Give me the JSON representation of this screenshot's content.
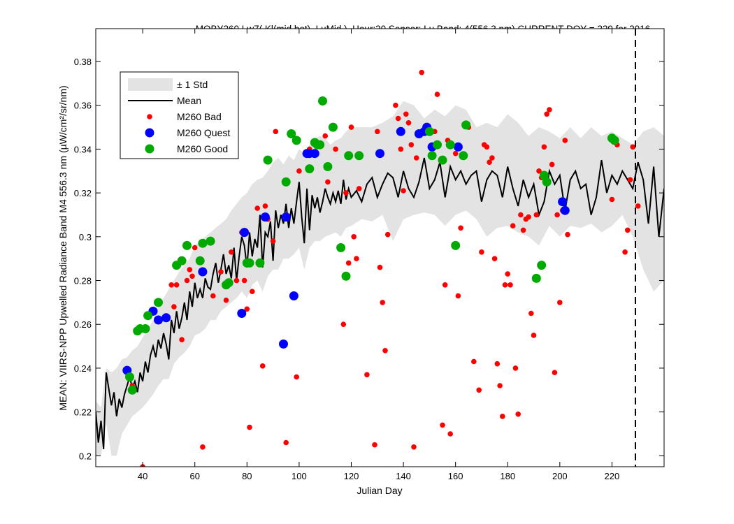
{
  "chart_data": {
    "type": "scatter",
    "title": "MOBY260   Lw7( Kl(mid,bot), LuMid ),   Hour:20 Sensor: Lu Band: 4(556.3 nm)   CURRENT DOY = 229 for 2016",
    "xlabel": "Julian Day",
    "ylabel": "MEAN: VIIRS-NPP Upwelled Radiance Band M4 556.3 nm (µW/cm²/sr/nm)",
    "xlim": [
      22,
      240
    ],
    "ylim": [
      0.195,
      0.395
    ],
    "xticks": [
      40,
      60,
      80,
      100,
      120,
      140,
      160,
      180,
      200,
      220
    ],
    "yticks": [
      0.2,
      0.22,
      0.24,
      0.26,
      0.28,
      0.3,
      0.32,
      0.34,
      0.36,
      0.38
    ],
    "current_doy": 229,
    "grid": false,
    "legend_position": "top-left",
    "legend": {
      "std": "± 1 Std",
      "mean": "Mean",
      "bad": "M260 Bad",
      "quest": "M260 Quest",
      "good": "M260 Good"
    },
    "colors": {
      "bad": "#ff0000",
      "quest": "#0000ff",
      "good": "#00aa00",
      "std_band": "#e3e3e3",
      "mean": "#000000"
    },
    "mean_series": {
      "x": [
        22,
        23,
        24,
        25,
        26,
        28,
        29,
        30,
        31,
        32,
        33,
        34,
        35,
        36,
        37,
        38,
        39,
        40,
        41,
        42,
        43,
        44,
        45,
        46,
        47,
        48,
        49,
        50,
        51,
        52,
        53,
        54,
        55,
        56,
        57,
        58,
        59,
        60,
        61,
        62,
        63,
        64,
        65,
        66,
        67,
        68,
        69,
        70,
        71,
        72,
        73,
        74,
        75,
        76,
        77,
        78,
        79,
        80,
        81,
        82,
        83,
        84,
        85,
        86,
        87,
        88,
        89,
        90,
        91,
        92,
        93,
        94,
        95,
        96,
        97,
        98,
        99,
        100,
        101,
        102,
        103,
        104,
        105,
        106,
        107,
        108,
        109,
        110,
        111,
        112,
        113,
        114,
        115,
        116,
        117,
        118,
        119,
        120,
        122,
        124,
        126,
        128,
        130,
        132,
        134,
        136,
        138,
        140,
        142,
        144,
        146,
        148,
        150,
        152,
        154,
        156,
        158,
        160,
        162,
        164,
        166,
        168,
        170,
        172,
        174,
        176,
        178,
        180,
        182,
        184,
        186,
        188,
        190,
        192,
        194,
        196,
        198,
        200,
        202,
        204,
        206,
        208,
        210,
        212,
        214,
        216,
        218,
        220,
        222,
        224,
        226,
        228,
        230,
        232,
        234,
        236,
        238,
        240
      ],
      "y": [
        0.22,
        0.206,
        0.216,
        0.203,
        0.238,
        0.223,
        0.229,
        0.218,
        0.226,
        0.222,
        0.228,
        0.232,
        0.236,
        0.231,
        0.234,
        0.229,
        0.238,
        0.234,
        0.243,
        0.238,
        0.246,
        0.25,
        0.245,
        0.253,
        0.249,
        0.256,
        0.251,
        0.244,
        0.262,
        0.256,
        0.266,
        0.258,
        0.263,
        0.27,
        0.262,
        0.275,
        0.268,
        0.279,
        0.272,
        0.276,
        0.272,
        0.281,
        0.277,
        0.276,
        0.283,
        0.288,
        0.279,
        0.285,
        0.292,
        0.283,
        0.287,
        0.281,
        0.295,
        0.28,
        0.291,
        0.3,
        0.296,
        0.286,
        0.302,
        0.291,
        0.299,
        0.295,
        0.31,
        0.286,
        0.302,
        0.3,
        0.307,
        0.289,
        0.312,
        0.304,
        0.31,
        0.306,
        0.315,
        0.304,
        0.313,
        0.306,
        0.316,
        0.325,
        0.309,
        0.297,
        0.322,
        0.303,
        0.319,
        0.313,
        0.318,
        0.311,
        0.316,
        0.322,
        0.318,
        0.315,
        0.32,
        0.316,
        0.321,
        0.315,
        0.326,
        0.317,
        0.322,
        0.318,
        0.321,
        0.316,
        0.324,
        0.327,
        0.318,
        0.324,
        0.329,
        0.327,
        0.318,
        0.33,
        0.322,
        0.318,
        0.325,
        0.336,
        0.322,
        0.326,
        0.334,
        0.318,
        0.332,
        0.326,
        0.33,
        0.324,
        0.328,
        0.33,
        0.316,
        0.326,
        0.33,
        0.328,
        0.318,
        0.332,
        0.322,
        0.314,
        0.326,
        0.318,
        0.324,
        0.31,
        0.316,
        0.33,
        0.324,
        0.328,
        0.312,
        0.326,
        0.33,
        0.322,
        0.324,
        0.31,
        0.318,
        0.335,
        0.32,
        0.328,
        0.324,
        0.33,
        0.326,
        0.322,
        0.334,
        0.326,
        0.306,
        0.332,
        0.3,
        0.322
      ]
    },
    "std_series": {
      "x": [
        22,
        24,
        26,
        28,
        30,
        32,
        34,
        36,
        38,
        40,
        42,
        44,
        46,
        48,
        50,
        52,
        54,
        56,
        58,
        60,
        62,
        64,
        66,
        68,
        70,
        72,
        74,
        76,
        78,
        80,
        82,
        84,
        86,
        88,
        90,
        92,
        94,
        96,
        98,
        100,
        102,
        104,
        106,
        108,
        110,
        112,
        114,
        116,
        118,
        120,
        124,
        128,
        132,
        136,
        140,
        144,
        148,
        152,
        156,
        160,
        164,
        168,
        172,
        176,
        180,
        184,
        188,
        192,
        196,
        200,
        204,
        208,
        212,
        216,
        220,
        224,
        228,
        232,
        236,
        240
      ],
      "lower": [
        0.2,
        0.2,
        0.215,
        0.2,
        0.2,
        0.21,
        0.214,
        0.218,
        0.22,
        0.222,
        0.225,
        0.228,
        0.232,
        0.235,
        0.235,
        0.242,
        0.245,
        0.247,
        0.25,
        0.255,
        0.256,
        0.258,
        0.262,
        0.262,
        0.266,
        0.268,
        0.27,
        0.272,
        0.275,
        0.272,
        0.278,
        0.28,
        0.275,
        0.282,
        0.285,
        0.285,
        0.29,
        0.29,
        0.292,
        0.295,
        0.285,
        0.295,
        0.298,
        0.298,
        0.3,
        0.301,
        0.302,
        0.3,
        0.304,
        0.305,
        0.308,
        0.307,
        0.31,
        0.298,
        0.308,
        0.31,
        0.311,
        0.31,
        0.305,
        0.31,
        0.312,
        0.308,
        0.3,
        0.304,
        0.305,
        0.302,
        0.3,
        0.296,
        0.305,
        0.3,
        0.305,
        0.304,
        0.306,
        0.302,
        0.305,
        0.31,
        0.3,
        0.285,
        0.275,
        0.28
      ],
      "upper": [
        0.225,
        0.222,
        0.24,
        0.238,
        0.24,
        0.244,
        0.245,
        0.248,
        0.25,
        0.254,
        0.258,
        0.262,
        0.268,
        0.272,
        0.276,
        0.28,
        0.284,
        0.287,
        0.29,
        0.296,
        0.298,
        0.3,
        0.302,
        0.304,
        0.306,
        0.308,
        0.312,
        0.315,
        0.318,
        0.32,
        0.324,
        0.326,
        0.327,
        0.33,
        0.334,
        0.336,
        0.333,
        0.337,
        0.335,
        0.34,
        0.338,
        0.342,
        0.345,
        0.346,
        0.345,
        0.342,
        0.344,
        0.345,
        0.348,
        0.35,
        0.35,
        0.35,
        0.352,
        0.355,
        0.362,
        0.36,
        0.354,
        0.358,
        0.355,
        0.36,
        0.358,
        0.35,
        0.352,
        0.35,
        0.356,
        0.352,
        0.346,
        0.35,
        0.348,
        0.345,
        0.35,
        0.345,
        0.35,
        0.346,
        0.348,
        0.345,
        0.342,
        0.348,
        0.35,
        0.346
      ]
    },
    "bad": {
      "x": [
        36,
        40,
        51,
        52,
        53,
        55,
        57,
        58,
        59,
        60,
        63,
        67,
        70,
        72,
        74,
        76,
        78,
        79,
        80,
        81,
        82,
        84,
        86,
        87,
        88,
        90,
        91,
        95,
        99,
        100,
        104,
        105,
        110,
        111,
        114,
        117,
        118,
        119,
        120,
        121,
        122,
        123,
        126,
        129,
        130,
        131,
        132,
        133,
        134,
        137,
        138,
        139,
        140,
        141,
        142,
        143,
        144,
        145,
        147,
        152,
        153,
        155,
        156,
        157,
        158,
        160,
        161,
        162,
        165,
        167,
        169,
        170,
        171,
        172,
        173,
        174,
        175,
        176,
        177,
        178,
        179,
        180,
        181,
        182,
        183,
        184,
        185,
        186,
        187,
        188,
        189,
        190,
        191,
        192,
        193,
        194,
        195,
        196,
        197,
        198,
        199,
        200,
        201,
        202,
        203,
        220,
        222,
        225,
        226,
        227,
        228,
        230
      ],
      "y": [
        0.232,
        0.195,
        0.278,
        0.268,
        0.278,
        0.253,
        0.28,
        0.285,
        0.282,
        0.295,
        0.204,
        0.273,
        0.284,
        0.271,
        0.293,
        0.28,
        0.302,
        0.28,
        0.267,
        0.213,
        0.275,
        0.313,
        0.241,
        0.314,
        0.308,
        0.298,
        0.348,
        0.206,
        0.236,
        0.33,
        0.34,
        0.338,
        0.346,
        0.325,
        0.34,
        0.26,
        0.32,
        0.288,
        0.35,
        0.3,
        0.29,
        0.322,
        0.237,
        0.205,
        0.348,
        0.286,
        0.27,
        0.248,
        0.301,
        0.36,
        0.354,
        0.34,
        0.321,
        0.356,
        0.352,
        0.342,
        0.204,
        0.336,
        0.375,
        0.348,
        0.365,
        0.214,
        0.278,
        0.344,
        0.21,
        0.338,
        0.273,
        0.304,
        0.35,
        0.243,
        0.23,
        0.293,
        0.342,
        0.341,
        0.334,
        0.336,
        0.29,
        0.242,
        0.232,
        0.218,
        0.278,
        0.283,
        0.278,
        0.305,
        0.24,
        0.219,
        0.31,
        0.303,
        0.308,
        0.309,
        0.265,
        0.255,
        0.31,
        0.33,
        0.327,
        0.341,
        0.356,
        0.358,
        0.333,
        0.238,
        0.31,
        0.27,
        0.312,
        0.344,
        0.301,
        0.317,
        0.342,
        0.293,
        0.303,
        0.326,
        0.341,
        0.314
      ]
    },
    "quest": {
      "x": [
        34,
        44,
        46,
        49,
        63,
        78,
        79,
        87,
        94,
        95,
        98,
        103,
        104,
        106,
        131,
        139,
        146,
        148,
        149,
        151,
        161,
        201,
        202
      ],
      "y": [
        0.239,
        0.266,
        0.262,
        0.263,
        0.284,
        0.265,
        0.302,
        0.309,
        0.251,
        0.309,
        0.273,
        0.338,
        0.338,
        0.338,
        0.338,
        0.348,
        0.347,
        0.348,
        0.35,
        0.341,
        0.341,
        0.316,
        0.312
      ]
    },
    "good": {
      "x": [
        35,
        36,
        38,
        39,
        41,
        42,
        46,
        53,
        55,
        57,
        62,
        63,
        66,
        72,
        73,
        80,
        81,
        85,
        88,
        95,
        97,
        99,
        104,
        106,
        107,
        108,
        109,
        111,
        113,
        116,
        118,
        119,
        123,
        150,
        151,
        153,
        155,
        158,
        160,
        163,
        164,
        191,
        193,
        194,
        195,
        220,
        221
      ],
      "y": [
        0.236,
        0.23,
        0.257,
        0.258,
        0.258,
        0.264,
        0.27,
        0.287,
        0.289,
        0.296,
        0.289,
        0.297,
        0.298,
        0.278,
        0.279,
        0.288,
        0.288,
        0.288,
        0.335,
        0.325,
        0.347,
        0.344,
        0.331,
        0.343,
        0.342,
        0.342,
        0.362,
        0.332,
        0.35,
        0.295,
        0.282,
        0.337,
        0.337,
        0.348,
        0.337,
        0.342,
        0.335,
        0.342,
        0.296,
        0.337,
        0.351,
        0.281,
        0.287,
        0.328,
        0.325,
        0.345,
        0.344
      ]
    }
  }
}
